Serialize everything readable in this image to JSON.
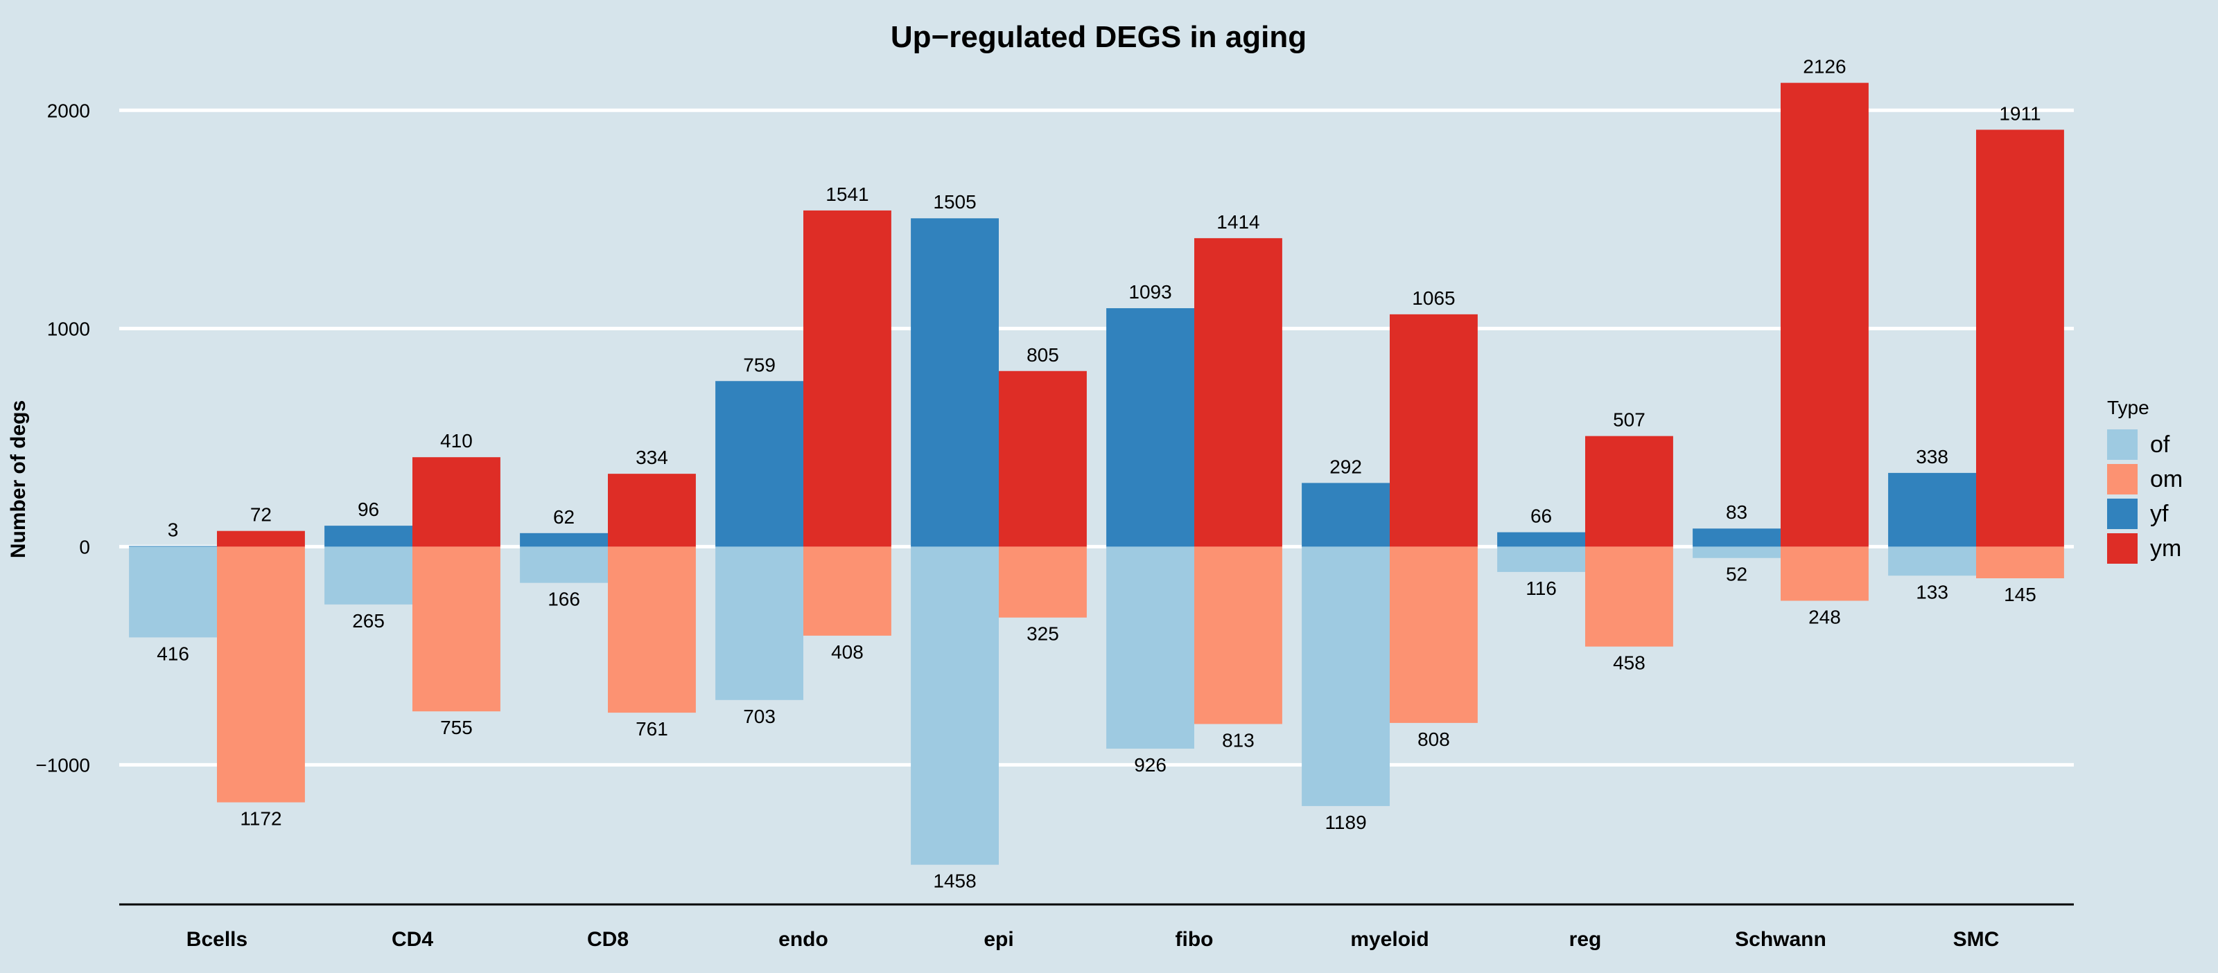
{
  "chart_data": {
    "type": "bar",
    "title": "Up−regulated DEGS in aging",
    "xlabel": "",
    "ylabel": "Number of degs",
    "ylim": [
      -1640,
      2220
    ],
    "yticks": [
      2000,
      1000,
      0,
      -1000
    ],
    "ytick_labels": [
      "2000",
      "1000",
      "0",
      "−1000"
    ],
    "grid": true,
    "legend_position": "right",
    "legend_title": "Type",
    "categories": [
      "Bcells",
      "CD4",
      "CD8",
      "endo",
      "epi",
      "fibo",
      "myeloid",
      "reg",
      "Schwann",
      "SMC"
    ],
    "series": [
      {
        "name": "of",
        "color": "#9ecae1",
        "values": [
          -416,
          -265,
          -166,
          -703,
          -1458,
          -926,
          -1189,
          -116,
          -52,
          -133
        ],
        "labels": [
          "416",
          "265",
          "166",
          "703",
          "1458",
          "926",
          "1189",
          "116",
          "52",
          "133"
        ]
      },
      {
        "name": "om",
        "color": "#fc9272",
        "values": [
          -1172,
          -755,
          -761,
          -408,
          -325,
          -813,
          -808,
          -458,
          -248,
          -145
        ],
        "labels": [
          "1172",
          "755",
          "761",
          "408",
          "325",
          "813",
          "808",
          "458",
          "248",
          "145"
        ]
      },
      {
        "name": "yf",
        "color": "#3182bd",
        "values": [
          3,
          96,
          62,
          759,
          1505,
          1093,
          292,
          66,
          83,
          338
        ],
        "labels": [
          "3",
          "96",
          "62",
          "759",
          "1505",
          "1093",
          "292",
          "66",
          "83",
          "338"
        ]
      },
      {
        "name": "ym",
        "color": "#de2d26",
        "values": [
          72,
          410,
          334,
          1541,
          805,
          1414,
          1065,
          507,
          2126,
          1911
        ],
        "labels": [
          "72",
          "410",
          "334",
          "1541",
          "805",
          "1414",
          "1065",
          "507",
          "2126",
          "1911"
        ]
      }
    ]
  }
}
